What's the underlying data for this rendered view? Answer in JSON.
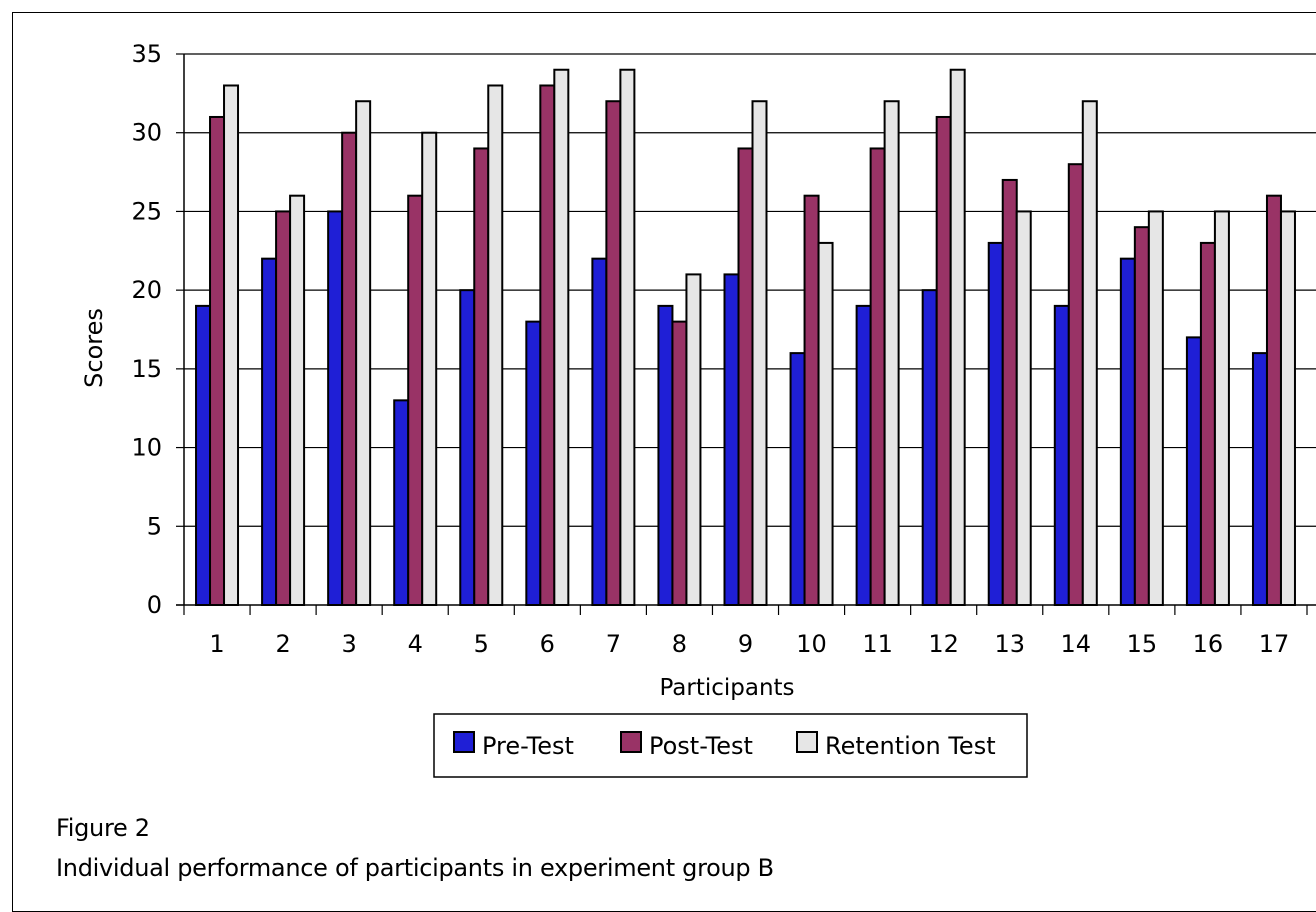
{
  "chart_data": {
    "type": "bar",
    "xlabel": "Participants",
    "ylabel": "Scores",
    "ylim": [
      0,
      35
    ],
    "yticks": [
      0,
      5,
      10,
      15,
      20,
      25,
      30,
      35
    ],
    "grid": true,
    "legend_position": "bottom-center",
    "categories": [
      "1",
      "2",
      "3",
      "4",
      "5",
      "6",
      "7",
      "8",
      "9",
      "10",
      "11",
      "12",
      "13",
      "14",
      "15",
      "16",
      "17"
    ],
    "series": [
      {
        "name": "Pre-Test",
        "color": "#1f1fd6",
        "values": [
          19,
          22,
          25,
          13,
          20,
          18,
          22,
          19,
          21,
          16,
          19,
          20,
          23,
          19,
          22,
          17,
          16
        ]
      },
      {
        "name": "Post-Test",
        "color": "#993366",
        "values": [
          31,
          25,
          30,
          26,
          29,
          33,
          32,
          18,
          29,
          26,
          29,
          31,
          27,
          28,
          24,
          23,
          26
        ]
      },
      {
        "name": "Retention Test",
        "color": "#e6e6e6",
        "values": [
          33,
          26,
          32,
          30,
          33,
          34,
          34,
          21,
          32,
          23,
          32,
          34,
          25,
          32,
          25,
          25,
          25
        ]
      }
    ]
  },
  "caption": {
    "label": "Figure 2",
    "text": "Individual performance of participants in experiment group B"
  }
}
